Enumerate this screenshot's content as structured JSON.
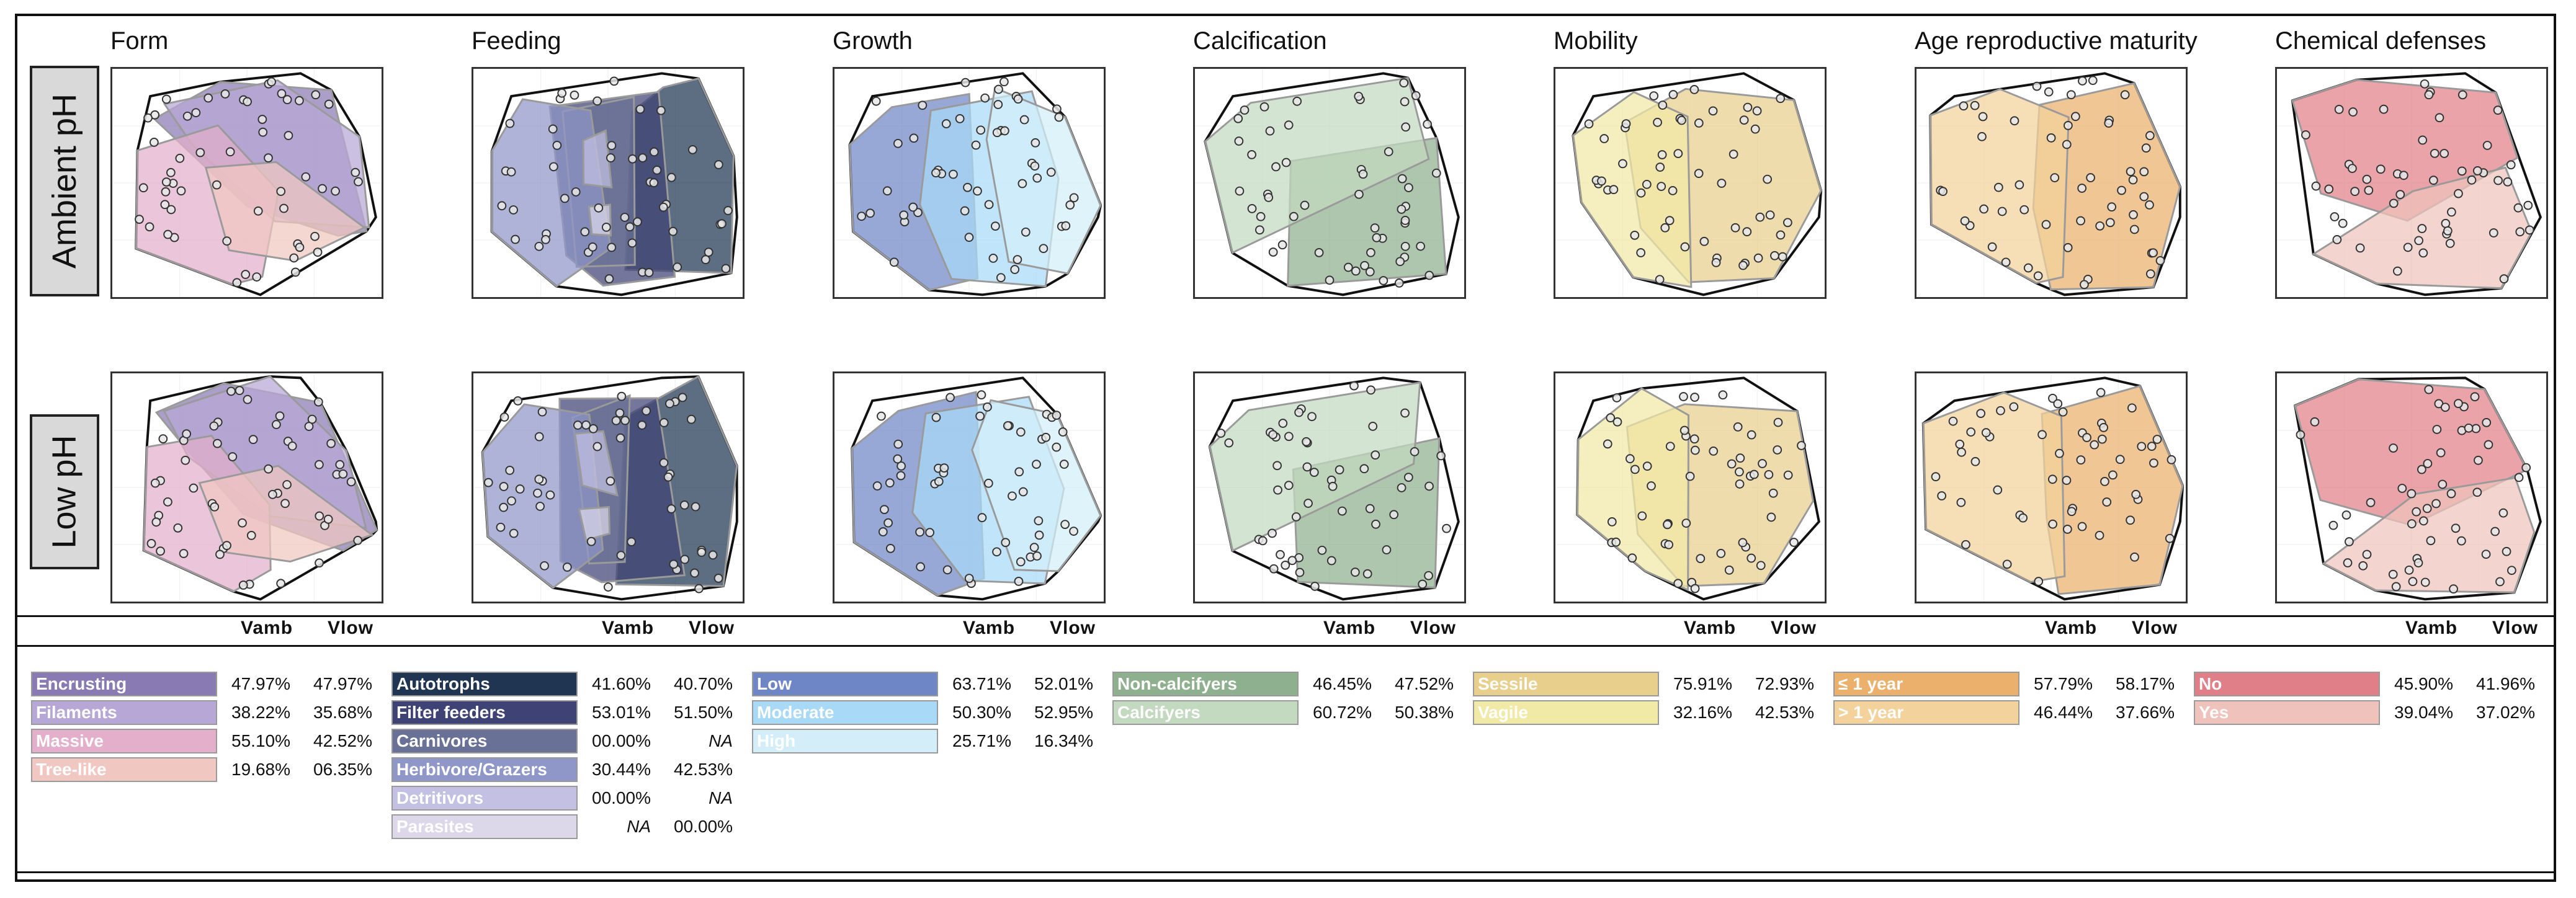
{
  "row_labels": [
    "Ambient pH",
    "Low pH"
  ],
  "v_headers": {
    "amb": "Vamb",
    "low": "Vlow"
  },
  "axis_style": {
    "hull_color": "#111111",
    "point_fill": "#e8e8e8",
    "point_stroke": "#333333"
  },
  "chart_data": [
    {
      "type": "scatter",
      "title": "Form",
      "traits": [
        {
          "name": "Encrusting",
          "color": "#8a7ab4",
          "text_color": "#ffffff",
          "vamb": "47.97%",
          "vlow": "47.97%"
        },
        {
          "name": "Filaments",
          "color": "#b7a7d6",
          "text_color": "#ffffff",
          "vamb": "38.22%",
          "vlow": "35.68%"
        },
        {
          "name": "Massive",
          "color": "#e3afcb",
          "text_color": "#ffffff",
          "vamb": "55.10%",
          "vlow": "42.52%"
        },
        {
          "name": "Tree-like",
          "color": "#f1c8c1",
          "text_color": "#ffffff",
          "vamb": "19.68%",
          "vlow": "06.35%"
        }
      ]
    },
    {
      "type": "scatter",
      "title": "Feeding",
      "traits": [
        {
          "name": "Autotrophs",
          "color": "#1f3552",
          "text_color": "#ffffff",
          "vamb": "41.60%",
          "vlow": "40.70%"
        },
        {
          "name": "Filter feeders",
          "color": "#3e4275",
          "text_color": "#ffffff",
          "vamb": "53.01%",
          "vlow": "51.50%"
        },
        {
          "name": "Carnivores",
          "color": "#6a7196",
          "text_color": "#ffffff",
          "vamb": "00.00%",
          "vlow": "NA"
        },
        {
          "name": "Herbivore/Grazers",
          "color": "#8f96c8",
          "text_color": "#ffffff",
          "vamb": "30.44%",
          "vlow": "42.53%"
        },
        {
          "name": "Detritivors",
          "color": "#c3c0e3",
          "text_color": "#ffffff",
          "vamb": "00.00%",
          "vlow": "NA"
        },
        {
          "name": "Parasites",
          "color": "#dcd8ea",
          "text_color": "#ffffff",
          "vamb": "NA",
          "vlow": "00.00%"
        }
      ]
    },
    {
      "type": "scatter",
      "title": "Growth",
      "traits": [
        {
          "name": "Low",
          "color": "#6f86c6",
          "text_color": "#ffffff",
          "vamb": "63.71%",
          "vlow": "52.01%"
        },
        {
          "name": "Moderate",
          "color": "#a8d9f6",
          "text_color": "#ffffff",
          "vamb": "50.30%",
          "vlow": "52.95%"
        },
        {
          "name": "High",
          "color": "#d3eef9",
          "text_color": "#ffffff",
          "vamb": "25.71%",
          "vlow": "16.34%"
        }
      ]
    },
    {
      "type": "scatter",
      "title": "Calcification",
      "traits": [
        {
          "name": "Non-calcifyers",
          "color": "#8fb08e",
          "text_color": "#ffffff",
          "vamb": "46.45%",
          "vlow": "47.52%"
        },
        {
          "name": "Calcifyers",
          "color": "#c3d9c0",
          "text_color": "#ffffff",
          "vamb": "60.72%",
          "vlow": "50.38%"
        }
      ]
    },
    {
      "type": "scatter",
      "title": "Mobility",
      "traits": [
        {
          "name": "Sessile",
          "color": "#e9cf8c",
          "text_color": "#ffffff",
          "vamb": "75.91%",
          "vlow": "72.93%"
        },
        {
          "name": "Vagile",
          "color": "#f1e9a6",
          "text_color": "#ffffff",
          "vamb": "32.16%",
          "vlow": "42.53%"
        }
      ]
    },
    {
      "type": "scatter",
      "title": "Age reproductive maturity",
      "traits": [
        {
          "name": "≤ 1 year",
          "color": "#ebb06c",
          "text_color": "#ffffff",
          "vamb": "57.79%",
          "vlow": "58.17%"
        },
        {
          "name": "> 1 year",
          "color": "#f3d29b",
          "text_color": "#ffffff",
          "vamb": "46.44%",
          "vlow": "37.66%"
        }
      ]
    },
    {
      "type": "scatter",
      "title": "Chemical defenses",
      "traits": [
        {
          "name": "No",
          "color": "#e07f88",
          "text_color": "#ffffff",
          "vamb": "45.90%",
          "vlow": "41.96%"
        },
        {
          "name": "Yes",
          "color": "#efc3bb",
          "text_color": "#ffffff",
          "vamb": "39.04%",
          "vlow": "37.02%"
        }
      ]
    }
  ]
}
